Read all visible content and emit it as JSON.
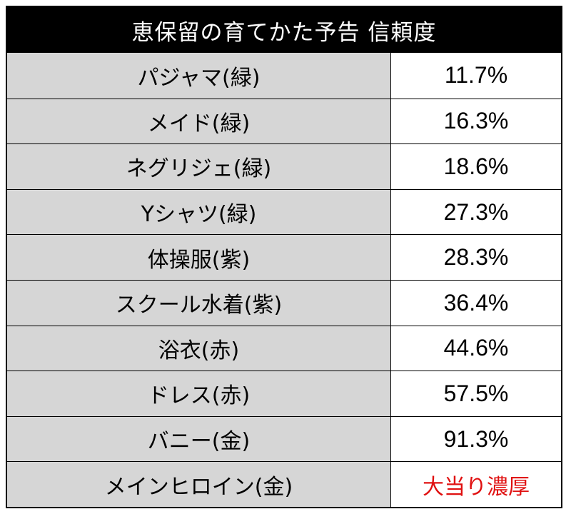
{
  "title": "恵保留の育てかた予告 信頼度",
  "rows": [
    {
      "label": "パジャマ(緑)",
      "value": "11.7%"
    },
    {
      "label": "メイド(緑)",
      "value": "16.3%"
    },
    {
      "label": "ネグリジェ(緑)",
      "value": "18.6%"
    },
    {
      "label": "Yシャツ(緑)",
      "value": "27.3%"
    },
    {
      "label": "体操服(紫)",
      "value": "28.3%"
    },
    {
      "label": "スクール水着(紫)",
      "value": "36.4%"
    },
    {
      "label": "浴衣(赤)",
      "value": "44.6%"
    },
    {
      "label": "ドレス(赤)",
      "value": "57.5%"
    },
    {
      "label": "バニー(金)",
      "value": "91.3%"
    },
    {
      "label": "メインヒロイン(金)",
      "value": "大当り濃厚"
    }
  ],
  "colors": {
    "header_bg": "#000000",
    "label_bg": "#d6d6d6",
    "highlight_text": "#e01010"
  }
}
